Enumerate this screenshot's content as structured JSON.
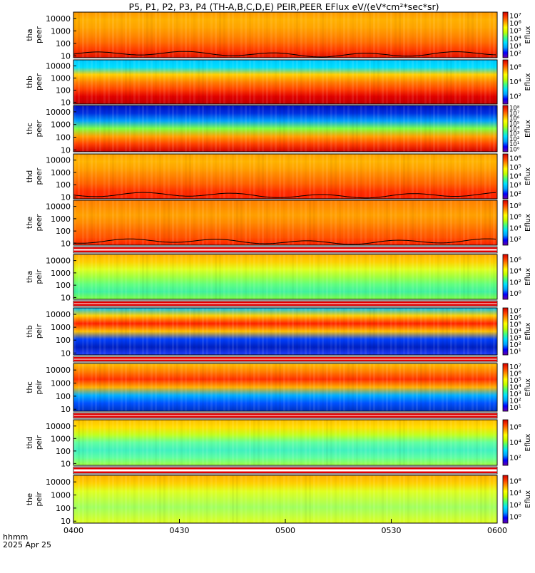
{
  "chart_data": {
    "type": "heatmap",
    "title": "P5, P1, P2, P3, P4 (TH-A,B,C,D,E) PEIR,PEER EFlux eV/(eV*cm²*sec*sr)",
    "x_axis": {
      "label": "hhmm",
      "date": "2025 Apr 25",
      "ticks": [
        "0400",
        "0430",
        "0500",
        "0530",
        "0600"
      ],
      "range": [
        "04:00",
        "06:00"
      ]
    },
    "colorbar_label": "Eflux",
    "y_scale": "log",
    "panels": [
      {
        "probe": "tha",
        "species": "peer",
        "yticks": [
          "10",
          "100",
          "1000",
          "10000"
        ],
        "cbar_ticks": [
          "10²",
          "10³",
          "10⁴",
          "10⁵",
          "10⁶",
          "10⁷"
        ],
        "cbar_range": [
          100,
          10000000
        ],
        "spacecraft_potential_line": true
      },
      {
        "probe": "thb",
        "species": "peer",
        "yticks": [
          "10",
          "100",
          "1000",
          "10000"
        ],
        "cbar_ticks": [
          "10²",
          "10⁴",
          "10⁶"
        ],
        "cbar_range": [
          100,
          1000000
        ],
        "spacecraft_potential_line": false
      },
      {
        "probe": "thc",
        "species": "peer",
        "yticks": [
          "10",
          "100",
          "1000",
          "10000"
        ],
        "cbar_ticks": [
          "10⁰",
          "10¹",
          "10²",
          "10³",
          "10⁴",
          "10⁵",
          "10⁶",
          "10⁷",
          "10⁸"
        ],
        "cbar_range": [
          1,
          100000000
        ],
        "spacecraft_potential_line": false
      },
      {
        "probe": "thd",
        "species": "peer",
        "yticks": [
          "10",
          "100",
          "1000",
          "10000"
        ],
        "cbar_ticks": [
          "10²",
          "10³",
          "10⁴",
          "10⁵",
          "10⁶"
        ],
        "cbar_range": [
          100,
          1000000
        ],
        "spacecraft_potential_line": true
      },
      {
        "probe": "the",
        "species": "peer",
        "yticks": [
          "10",
          "100",
          "1000",
          "10000"
        ],
        "cbar_ticks": [
          "10²",
          "10⁴",
          "10⁶",
          "10⁸"
        ],
        "cbar_range": [
          100,
          100000000
        ],
        "spacecraft_potential_line": true
      },
      {
        "probe": "tha",
        "species": "peir",
        "yticks": [
          "10",
          "100",
          "1000",
          "10000"
        ],
        "cbar_ticks": [
          "10⁰",
          "10²",
          "10⁴",
          "10⁶"
        ],
        "cbar_range": [
          1,
          1000000
        ],
        "spacecraft_potential_line": false
      },
      {
        "probe": "thb",
        "species": "peir",
        "yticks": [
          "10",
          "100",
          "1000",
          "10000"
        ],
        "cbar_ticks": [
          "10¹",
          "10²",
          "10³",
          "10⁴",
          "10⁵",
          "10⁶",
          "10⁷"
        ],
        "cbar_range": [
          10,
          10000000
        ],
        "spacecraft_potential_line": false
      },
      {
        "probe": "thc",
        "species": "peir",
        "yticks": [
          "10",
          "100",
          "1000",
          "10000"
        ],
        "cbar_ticks": [
          "10¹",
          "10²",
          "10³",
          "10⁴",
          "10⁵",
          "10⁶",
          "10⁷"
        ],
        "cbar_range": [
          10,
          10000000
        ],
        "spacecraft_potential_line": false
      },
      {
        "probe": "thd",
        "species": "peir",
        "yticks": [
          "10",
          "100",
          "1000",
          "10000"
        ],
        "cbar_ticks": [
          "10²",
          "10⁴",
          "10⁶"
        ],
        "cbar_range": [
          100,
          1000000
        ],
        "spacecraft_potential_line": false
      },
      {
        "probe": "the",
        "species": "peir",
        "yticks": [
          "10",
          "100",
          "1000",
          "10000"
        ],
        "cbar_ticks": [
          "10⁰",
          "10²",
          "10⁴",
          "10⁶"
        ],
        "cbar_range": [
          1,
          1000000
        ],
        "spacecraft_potential_line": false
      }
    ]
  },
  "colors": {
    "background": "#ffffff",
    "axis": "#000000",
    "flag_bar": "#e00000",
    "colormap": [
      "#6a00a8",
      "#0000ff",
      "#00a0ff",
      "#00e0ff",
      "#40ff80",
      "#c0ff00",
      "#ffff00",
      "#ffa000",
      "#ff4000",
      "#d00000"
    ]
  }
}
